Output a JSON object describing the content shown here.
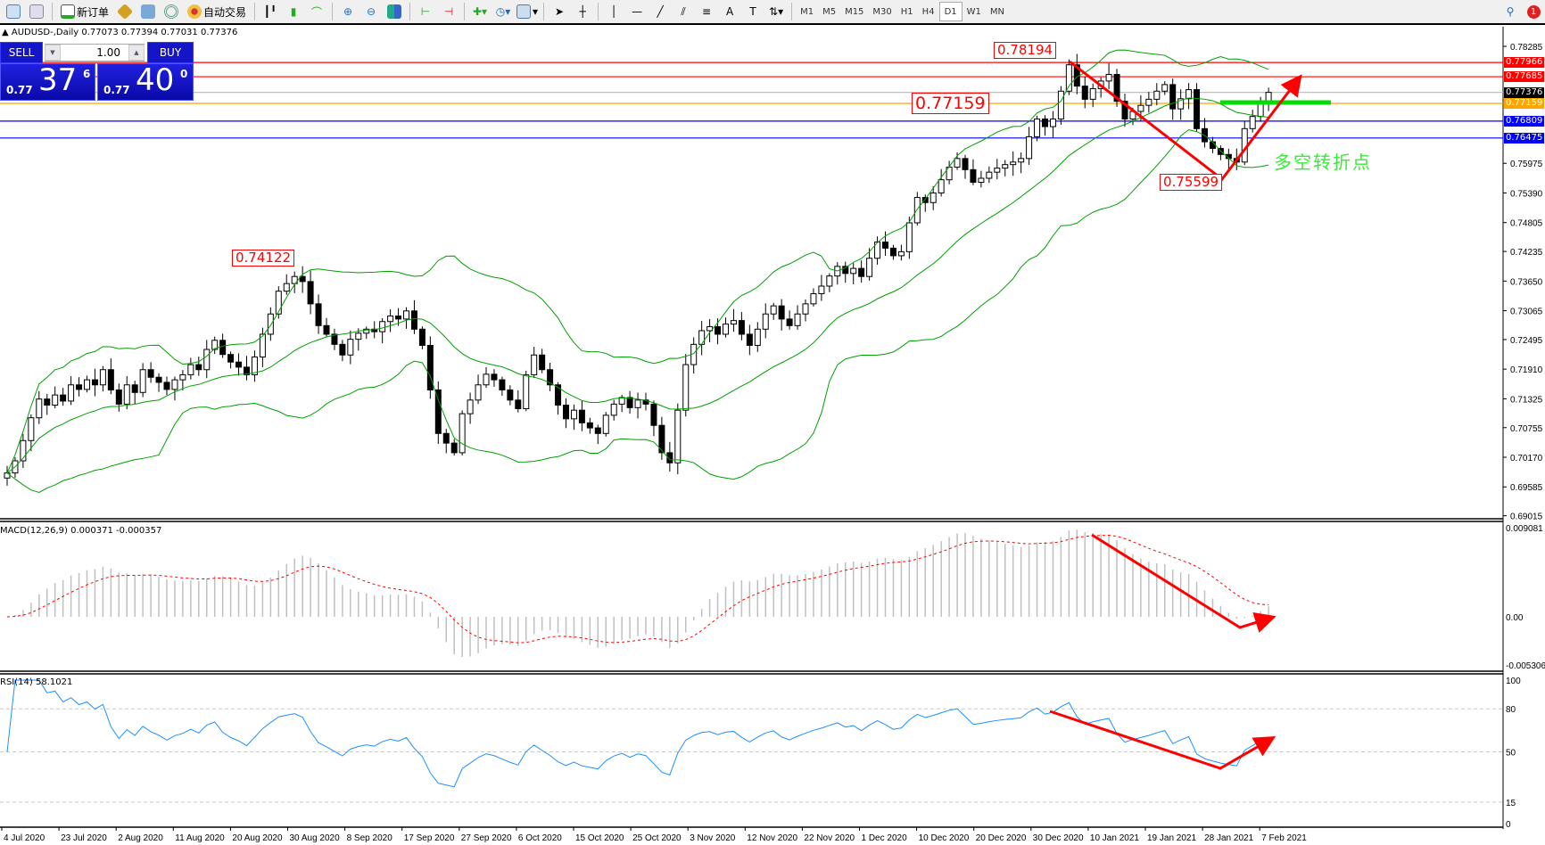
{
  "toolbar": {
    "new_order": "新订单",
    "auto_trade": "自动交易",
    "timeframes": [
      "M1",
      "M5",
      "M15",
      "M30",
      "H1",
      "H4",
      "D1",
      "W1",
      "MN"
    ],
    "active_timeframe": "D1",
    "notification_count": "1"
  },
  "chart": {
    "symbol_line": "AUDUSD-,Daily  0.77073 0.77394 0.77031 0.77376",
    "trade_panel": {
      "sell": "SELL",
      "buy": "BUY",
      "lot": "1.00",
      "bid_prefix": "0.77",
      "bid_main": "37",
      "bid_sup": "6",
      "ask_prefix": "0.77",
      "ask_main": "40",
      "ask_sup": "0"
    },
    "price_ticks": [
      "0.78285",
      "0.75975",
      "0.75390",
      "0.74805",
      "0.74235",
      "0.73650",
      "0.73065",
      "0.72495",
      "0.71910",
      "0.71325",
      "0.70755",
      "0.70170",
      "0.69585",
      "0.69015"
    ],
    "hlines": [
      {
        "price": "0.77966",
        "color": "#ff0000"
      },
      {
        "price": "0.77685",
        "color": "#ff0000"
      },
      {
        "price": "0.77376",
        "color": "#000000",
        "line": "#c0c0c0"
      },
      {
        "price": "0.77159",
        "color": "#ffa500"
      },
      {
        "price": "0.76809",
        "color": "#0000ff"
      },
      {
        "price": "0.76475",
        "color": "#0000ff"
      }
    ],
    "annotations": {
      "high1": "0.78194",
      "high2": "0.74122",
      "level": "0.77159",
      "low": "0.75599",
      "turn_text": "多空转折点"
    },
    "dates": [
      "4 Jul 2020",
      "23 Jul 2020",
      "2 Aug 2020",
      "11 Aug 2020",
      "20 Aug 2020",
      "30 Aug 2020",
      "8 Sep 2020",
      "17 Sep 2020",
      "27 Sep 2020",
      "6 Oct 2020",
      "15 Oct 2020",
      "25 Oct 2020",
      "3 Nov 2020",
      "12 Nov 2020",
      "22 Nov 2020",
      "1 Dec 2020",
      "10 Dec 2020",
      "20 Dec 2020",
      "30 Dec 2020",
      "10 Jan 2021",
      "19 Jan 2021",
      "28 Jan 2021",
      "7 Feb 2021"
    ],
    "colors": {
      "bands": "#00a000",
      "signal": "#ff0000",
      "rsi": "#1e90ff",
      "arrows": "#ff0000",
      "green_level": "#00dd00"
    }
  },
  "macd": {
    "label": "MACD(12,26,9) 0.000371 -0.000357",
    "ticks": [
      "0.009081",
      "0.00",
      "-0.005306"
    ]
  },
  "rsi": {
    "label": "RSI(14) 58.1021",
    "ticks": [
      "100",
      "80",
      "50",
      "15",
      "0"
    ]
  },
  "chart_data": {
    "type": "candlestick",
    "symbol": "AUDUSD-",
    "timeframe": "Daily",
    "ylim": [
      0.69015,
      0.78285
    ],
    "indicators": [
      "Bollinger Bands",
      "MACD(12,26,9)",
      "RSI(14)"
    ],
    "closes": [
      0.6986,
      0.701,
      0.705,
      0.7095,
      0.7132,
      0.712,
      0.714,
      0.7128,
      0.716,
      0.7151,
      0.717,
      0.716,
      0.719,
      0.715,
      0.7122,
      0.716,
      0.7145,
      0.719,
      0.7175,
      0.7165,
      0.7151,
      0.717,
      0.718,
      0.72,
      0.719,
      0.723,
      0.7248,
      0.722,
      0.7205,
      0.7195,
      0.718,
      0.7215,
      0.726,
      0.73,
      0.7345,
      0.736,
      0.7374,
      0.7364,
      0.732,
      0.7277,
      0.726,
      0.724,
      0.7219,
      0.725,
      0.7262,
      0.727,
      0.7265,
      0.7285,
      0.7296,
      0.729,
      0.7306,
      0.727,
      0.7238,
      0.715,
      0.7064,
      0.7045,
      0.7026,
      0.7103,
      0.713,
      0.716,
      0.7181,
      0.717,
      0.715,
      0.713,
      0.7113,
      0.718,
      0.7219,
      0.719,
      0.716,
      0.712,
      0.7093,
      0.711,
      0.7085,
      0.7075,
      0.7064,
      0.71,
      0.7122,
      0.7135,
      0.7115,
      0.713,
      0.7122,
      0.708,
      0.7026,
      0.7006,
      0.711,
      0.72,
      0.724,
      0.7267,
      0.7275,
      0.726,
      0.728,
      0.7287,
      0.726,
      0.7238,
      0.727,
      0.73,
      0.7316,
      0.729,
      0.7277,
      0.73,
      0.732,
      0.734,
      0.7355,
      0.7375,
      0.7394,
      0.738,
      0.739,
      0.7374,
      0.741,
      0.7442,
      0.743,
      0.7415,
      0.7423,
      0.748,
      0.753,
      0.752,
      0.7539,
      0.7565,
      0.759,
      0.7607,
      0.7585,
      0.756,
      0.7568,
      0.758,
      0.7588,
      0.7595,
      0.76,
      0.7607,
      0.765,
      0.7685,
      0.767,
      0.7685,
      0.774,
      0.7792,
      0.775,
      0.7724,
      0.7745,
      0.776,
      0.7773,
      0.772,
      0.7685,
      0.77,
      0.7712,
      0.7724,
      0.774,
      0.7753,
      0.7705,
      0.7725,
      0.7743,
      0.7666,
      0.764,
      0.7627,
      0.7615,
      0.7607,
      0.76,
      0.7666,
      0.769,
      0.7715,
      0.77376
    ]
  }
}
